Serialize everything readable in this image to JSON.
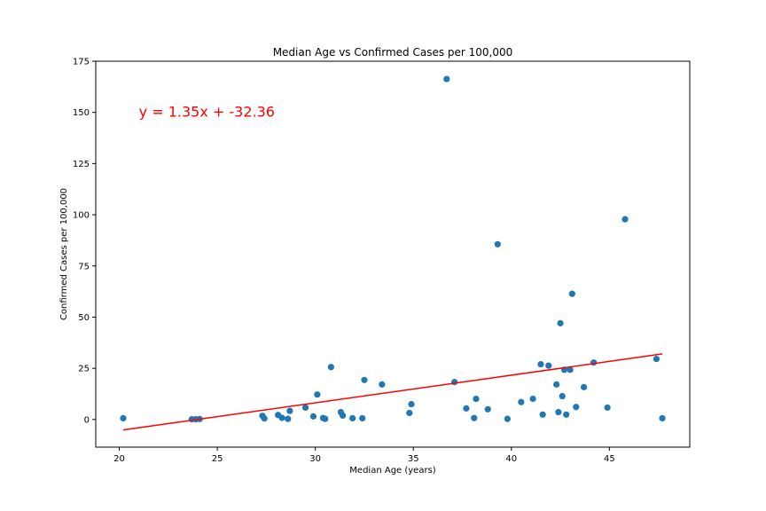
{
  "chart_data": {
    "type": "scatter",
    "title": "Median Age vs Confirmed Cases per 100,000",
    "xlabel": "Median Age (years)",
    "ylabel": "Confirmed Cases per 100,000",
    "xlim": [
      18.8,
      49.1
    ],
    "ylim": [
      -13.5,
      175
    ],
    "xticks": [
      20,
      25,
      30,
      35,
      40,
      45
    ],
    "yticks": [
      0,
      25,
      50,
      75,
      100,
      125,
      150,
      175
    ],
    "grid": false,
    "point_color": "#1f77b4",
    "line_color": "#ff0000",
    "annotation": {
      "text": "y = 1.35x + -32.36",
      "x": 21,
      "y": 148
    },
    "regression": {
      "slope": 1.35,
      "intercept": -32.36,
      "x_start": 20.2,
      "x_end": 47.7
    },
    "points": [
      [
        20.2,
        0.6
      ],
      [
        23.7,
        0.1
      ],
      [
        23.9,
        0.1
      ],
      [
        24.1,
        0.2
      ],
      [
        27.3,
        1.8
      ],
      [
        27.4,
        0.5
      ],
      [
        28.1,
        2.2
      ],
      [
        28.3,
        0.8
      ],
      [
        28.6,
        0.3
      ],
      [
        28.7,
        4.2
      ],
      [
        29.5,
        5.8
      ],
      [
        29.9,
        1.5
      ],
      [
        30.1,
        12.2
      ],
      [
        30.4,
        0.7
      ],
      [
        30.5,
        0.3
      ],
      [
        30.8,
        25.6
      ],
      [
        31.3,
        3.6
      ],
      [
        31.4,
        1.9
      ],
      [
        31.9,
        0.6
      ],
      [
        32.4,
        0.6
      ],
      [
        32.5,
        19.3
      ],
      [
        33.4,
        17.1
      ],
      [
        34.8,
        3.2
      ],
      [
        34.9,
        7.5
      ],
      [
        36.7,
        166.3
      ],
      [
        37.1,
        18.3
      ],
      [
        37.7,
        5.4
      ],
      [
        38.1,
        0.7
      ],
      [
        38.2,
        10.1
      ],
      [
        38.8,
        5.0
      ],
      [
        39.3,
        85.6
      ],
      [
        39.8,
        0.3
      ],
      [
        40.5,
        8.5
      ],
      [
        41.1,
        10.1
      ],
      [
        41.5,
        27.0
      ],
      [
        41.6,
        2.4
      ],
      [
        41.9,
        26.3
      ],
      [
        42.3,
        17.1
      ],
      [
        42.4,
        3.6
      ],
      [
        42.5,
        47.0
      ],
      [
        42.6,
        11.4
      ],
      [
        42.7,
        24.3
      ],
      [
        42.8,
        2.4
      ],
      [
        43.0,
        24.3
      ],
      [
        43.1,
        61.4
      ],
      [
        43.3,
        6.1
      ],
      [
        43.7,
        15.8
      ],
      [
        44.2,
        27.8
      ],
      [
        44.9,
        5.8
      ],
      [
        45.8,
        97.8
      ],
      [
        47.4,
        29.6
      ],
      [
        47.7,
        0.6
      ]
    ]
  }
}
